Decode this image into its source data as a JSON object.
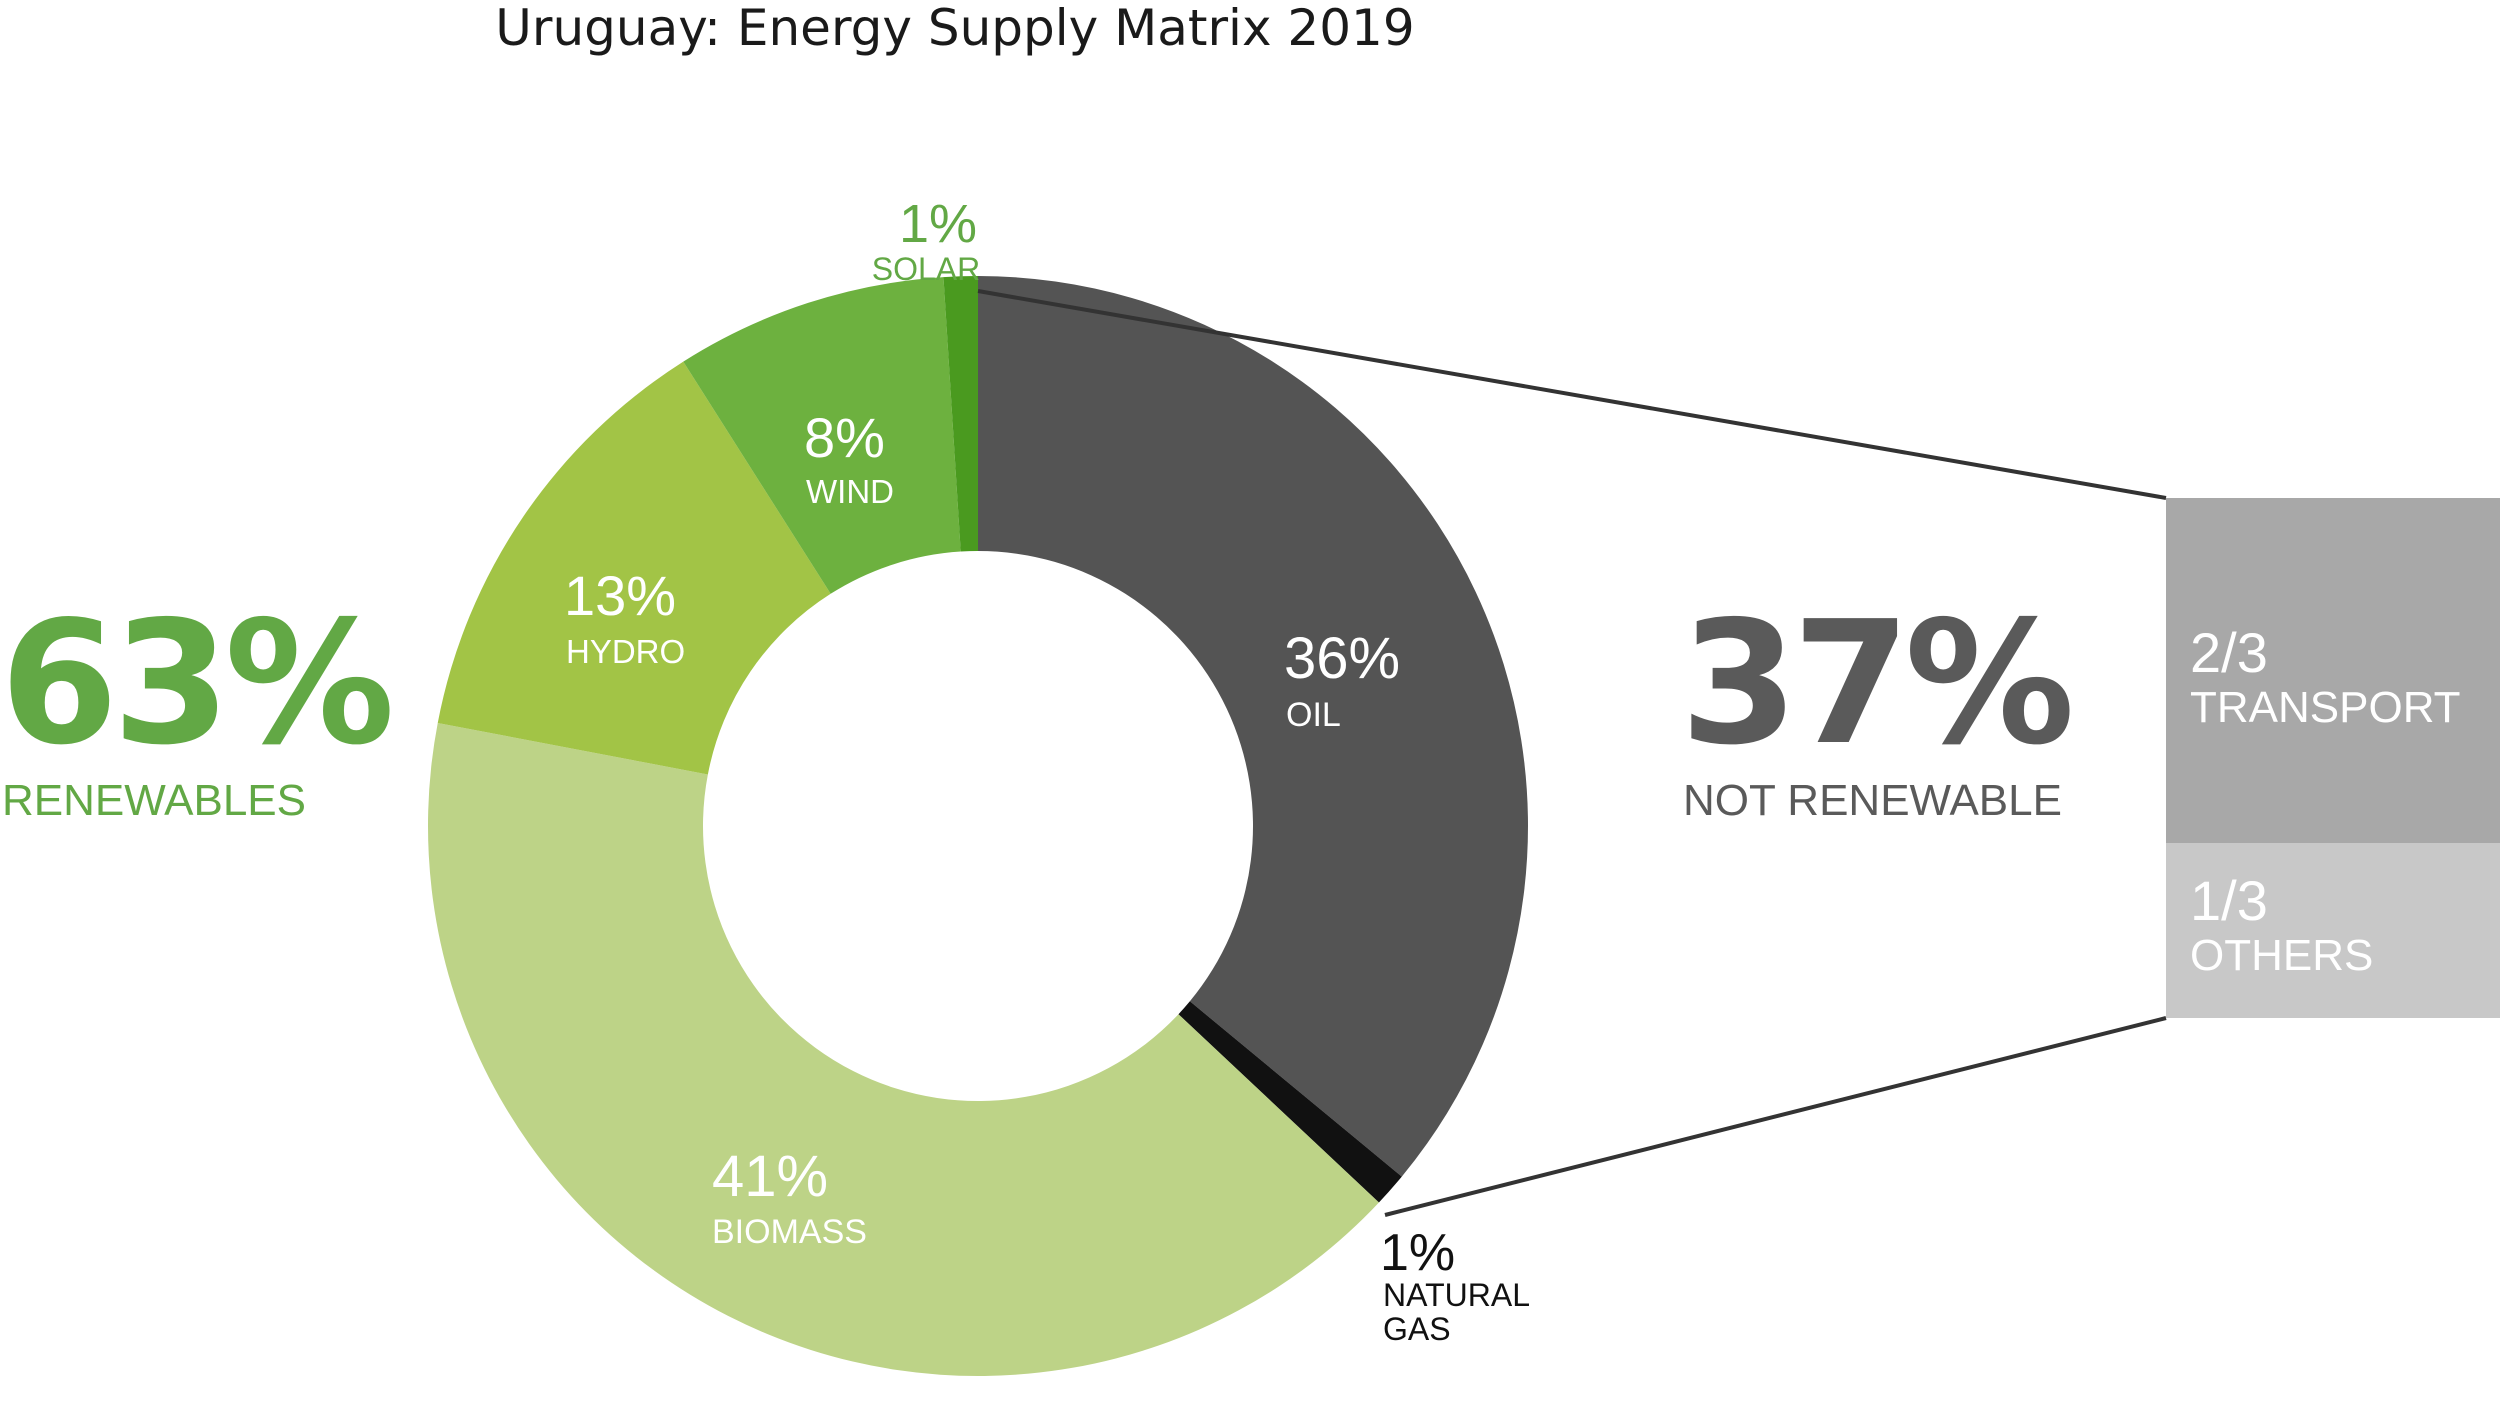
{
  "chart_data": {
    "type": "pie",
    "title": "Uruguay: Energy Supply Matrix 2019",
    "slices": [
      {
        "label": "OIL",
        "value_text": "36%",
        "value": 36,
        "color": "#545454"
      },
      {
        "label": "NATURAL GAS",
        "label_lines": [
          "NATURAL",
          "GAS"
        ],
        "value_text": "1%",
        "value": 1,
        "color": "#111111"
      },
      {
        "label": "BIOMASS",
        "value_text": "41%",
        "value": 41,
        "color": "#bdd387"
      },
      {
        "label": "HYDRO",
        "value_text": "13%",
        "value": 13,
        "color": "#a2c446"
      },
      {
        "label": "WIND",
        "value_text": "8%",
        "value": 8,
        "color": "#6db13f"
      },
      {
        "label": "SOLAR",
        "value_text": "1%",
        "value": 1,
        "color": "#4a9a1f"
      }
    ],
    "renewables": {
      "value_text": "63%",
      "label": "RENEWABLES",
      "color": "#62a845"
    },
    "not_renewable": {
      "value_text": "37%",
      "label": "NOT RENEWABLE",
      "color": "#5a5a5a"
    },
    "breakdown": [
      {
        "fraction": "2/3",
        "label": "TRANSPORT",
        "color": "#a8a8a8"
      },
      {
        "fraction": "1/3",
        "label": "OTHERS",
        "color": "#c8c8c8"
      }
    ]
  }
}
